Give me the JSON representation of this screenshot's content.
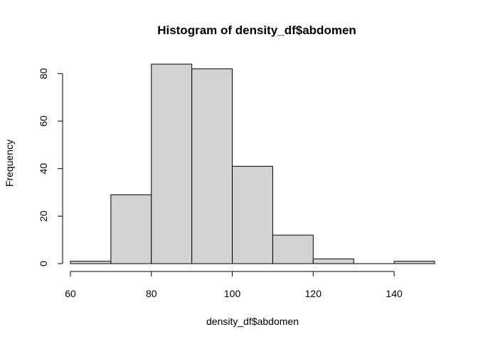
{
  "chart_data": {
    "type": "bar",
    "title": "Histogram of density_df$abdomen",
    "xlabel": "density_df$abdomen",
    "ylabel": "Frequency",
    "bins": [
      {
        "start": 60,
        "end": 70,
        "count": 1
      },
      {
        "start": 70,
        "end": 80,
        "count": 29
      },
      {
        "start": 80,
        "end": 90,
        "count": 84
      },
      {
        "start": 90,
        "end": 100,
        "count": 82
      },
      {
        "start": 100,
        "end": 110,
        "count": 41
      },
      {
        "start": 110,
        "end": 120,
        "count": 12
      },
      {
        "start": 120,
        "end": 130,
        "count": 2
      },
      {
        "start": 130,
        "end": 140,
        "count": 0
      },
      {
        "start": 140,
        "end": 150,
        "count": 1
      }
    ],
    "xlim": [
      60,
      150
    ],
    "ylim": [
      0,
      84
    ],
    "x_ticks": [
      "60",
      "80",
      "100",
      "120",
      "140"
    ],
    "y_ticks": [
      "0",
      "20",
      "40",
      "60",
      "80"
    ],
    "bar_fill": "#d3d3d3",
    "bar_stroke": "#000000",
    "grid": false,
    "legend": "none"
  }
}
